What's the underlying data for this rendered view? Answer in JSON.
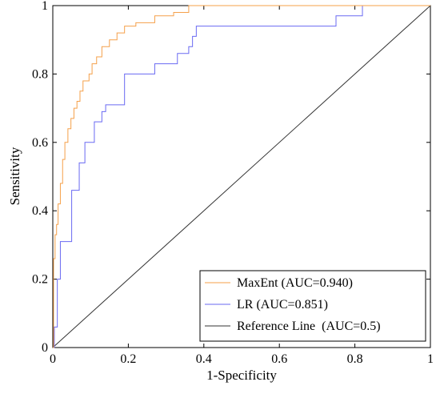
{
  "chart_data": {
    "type": "line",
    "title": "",
    "xlabel": "1-Specificity",
    "ylabel": "Sensitivity",
    "xlim": [
      0,
      1
    ],
    "ylim": [
      0,
      1
    ],
    "grid": false,
    "legend_position": "bottom-right",
    "x_ticks": [
      "0",
      "0.2",
      "0.4",
      "0.6",
      "0.8",
      "1"
    ],
    "y_ticks": [
      "0",
      "0.2",
      "0.4",
      "0.6",
      "0.8",
      "1"
    ],
    "series": [
      {
        "name": "MaxEnt (AUC=0.940)",
        "color": "#f5a04a",
        "x": [
          0,
          0.002,
          0.002,
          0.006,
          0.006,
          0.01,
          0.01,
          0.014,
          0.014,
          0.02,
          0.02,
          0.026,
          0.026,
          0.032,
          0.032,
          0.04,
          0.04,
          0.048,
          0.048,
          0.056,
          0.056,
          0.064,
          0.064,
          0.072,
          0.072,
          0.08,
          0.08,
          0.096,
          0.096,
          0.104,
          0.104,
          0.116,
          0.116,
          0.13,
          0.13,
          0.15,
          0.15,
          0.17,
          0.17,
          0.19,
          0.19,
          0.22,
          0.22,
          0.27,
          0.27,
          0.32,
          0.32,
          0.36,
          0.36,
          0.82,
          0.82,
          1.0
        ],
        "y": [
          0,
          0,
          0.26,
          0.26,
          0.33,
          0.33,
          0.36,
          0.36,
          0.42,
          0.42,
          0.48,
          0.48,
          0.55,
          0.55,
          0.6,
          0.6,
          0.64,
          0.64,
          0.67,
          0.67,
          0.7,
          0.7,
          0.72,
          0.72,
          0.75,
          0.75,
          0.78,
          0.78,
          0.8,
          0.8,
          0.83,
          0.83,
          0.85,
          0.85,
          0.88,
          0.88,
          0.9,
          0.9,
          0.92,
          0.92,
          0.94,
          0.94,
          0.95,
          0.95,
          0.97,
          0.97,
          0.98,
          0.98,
          1.0,
          1.0,
          1.0,
          1.0
        ]
      },
      {
        "name": "LR (AUC=0.851)",
        "color": "#6a6af2",
        "x": [
          0,
          0.004,
          0.004,
          0.012,
          0.012,
          0.02,
          0.02,
          0.05,
          0.05,
          0.07,
          0.07,
          0.085,
          0.085,
          0.11,
          0.11,
          0.13,
          0.13,
          0.14,
          0.14,
          0.19,
          0.19,
          0.27,
          0.27,
          0.33,
          0.33,
          0.36,
          0.36,
          0.37,
          0.37,
          0.38,
          0.38,
          0.4,
          0.4,
          0.75,
          0.75,
          0.82,
          0.82,
          1.0
        ],
        "y": [
          0,
          0,
          0.06,
          0.06,
          0.2,
          0.2,
          0.31,
          0.31,
          0.46,
          0.46,
          0.54,
          0.54,
          0.6,
          0.6,
          0.66,
          0.66,
          0.69,
          0.69,
          0.71,
          0.71,
          0.8,
          0.8,
          0.83,
          0.83,
          0.86,
          0.86,
          0.88,
          0.88,
          0.91,
          0.91,
          0.94,
          0.94,
          0.94,
          0.94,
          0.97,
          0.97,
          1.0,
          1.0
        ]
      },
      {
        "name": "Reference Line  (AUC=0.5)",
        "color": "#333333",
        "x": [
          0,
          1
        ],
        "y": [
          0,
          1
        ]
      }
    ]
  }
}
